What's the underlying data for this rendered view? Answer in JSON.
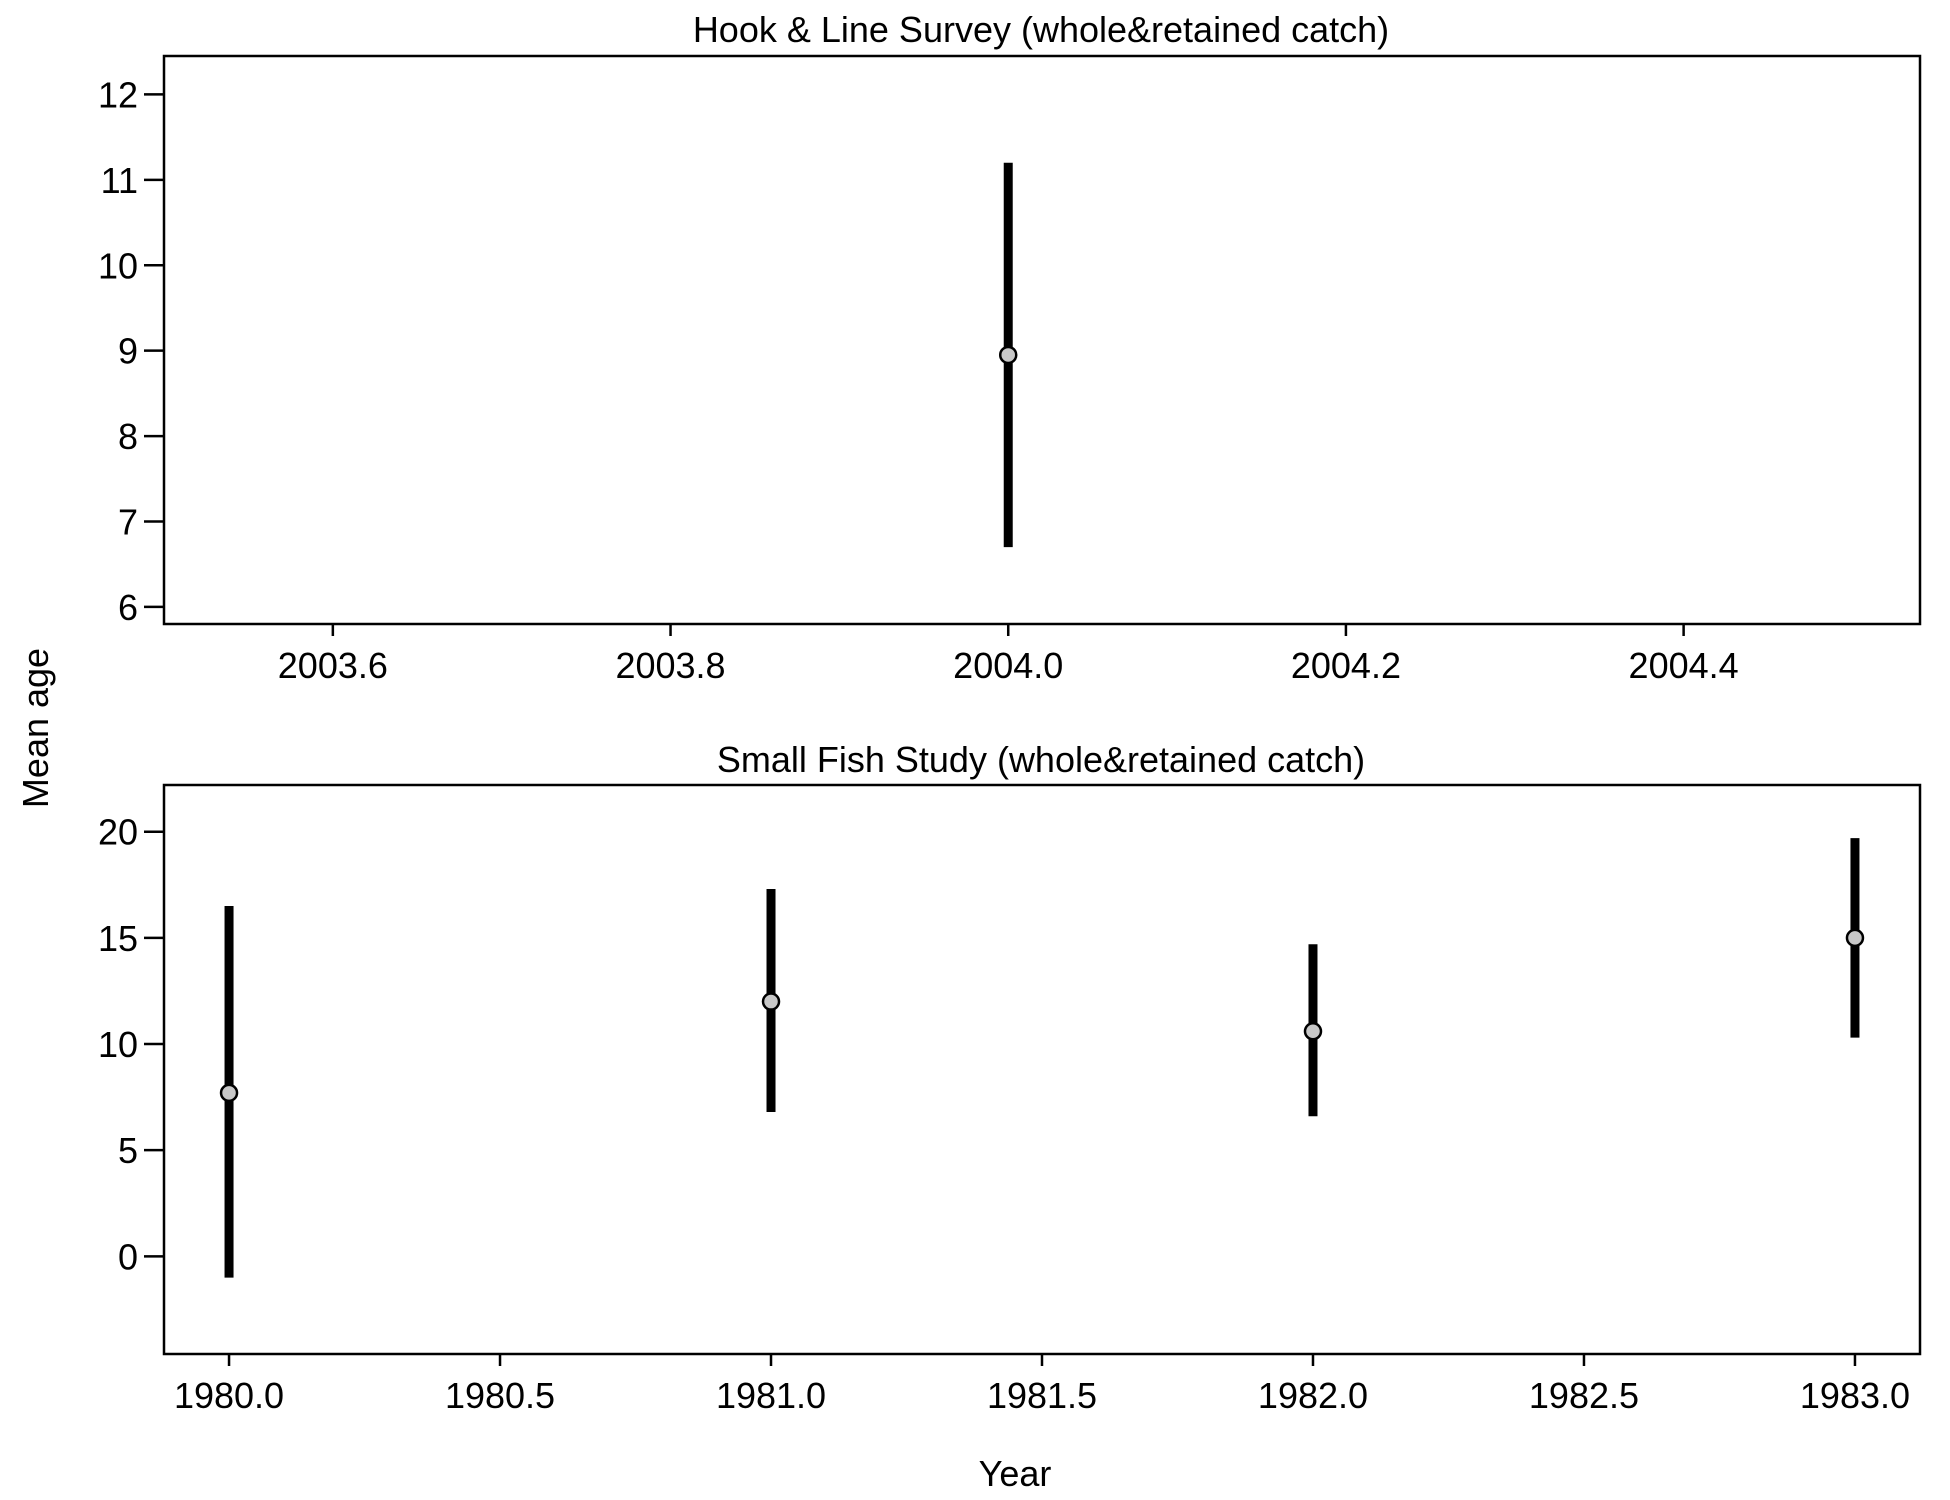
{
  "axes": {
    "ylabel": "Mean age",
    "xlabel": "Year"
  },
  "chart_data": [
    {
      "type": "scatter",
      "title": "Hook & Line Survey (whole&retained catch)",
      "xlim": [
        2003.5,
        2004.54
      ],
      "ylim": [
        5.8,
        12.45
      ],
      "x_ticks": [
        2003.6,
        2003.8,
        2004.0,
        2004.2,
        2004.4
      ],
      "x_tick_labels": [
        "2003.6",
        "2003.8",
        "2004.0",
        "2004.2",
        "2004.4"
      ],
      "y_ticks": [
        6,
        7,
        8,
        9,
        10,
        11,
        12
      ],
      "y_tick_labels": [
        "6",
        "7",
        "8",
        "9",
        "10",
        "11",
        "12"
      ],
      "series": [
        {
          "points": [
            {
              "x": 2004.0,
              "y": 8.95,
              "lower": 6.7,
              "upper": 11.2
            }
          ]
        }
      ],
      "grid": false,
      "colors": {
        "point_fill": "#c8c8c8",
        "bar": "#000000"
      }
    },
    {
      "type": "scatter",
      "title": "Small Fish Study (whole&retained catch)",
      "xlim": [
        1979.88,
        1983.12
      ],
      "ylim": [
        -4.6,
        22.2
      ],
      "x_ticks": [
        1980.0,
        1980.5,
        1981.0,
        1981.5,
        1982.0,
        1982.5,
        1983.0
      ],
      "x_tick_labels": [
        "1980.0",
        "1980.5",
        "1981.0",
        "1981.5",
        "1982.0",
        "1982.5",
        "1983.0"
      ],
      "y_ticks": [
        0,
        5,
        10,
        15,
        20
      ],
      "y_tick_labels": [
        "0",
        "5",
        "10",
        "15",
        "20"
      ],
      "series": [
        {
          "points": [
            {
              "x": 1980.0,
              "y": 7.7,
              "lower": -1.0,
              "upper": 16.5
            },
            {
              "x": 1981.0,
              "y": 12.0,
              "lower": 6.8,
              "upper": 17.3
            },
            {
              "x": 1982.0,
              "y": 10.6,
              "lower": 6.6,
              "upper": 14.7
            },
            {
              "x": 1983.0,
              "y": 15.0,
              "lower": 10.3,
              "upper": 19.7
            }
          ]
        }
      ],
      "grid": false,
      "colors": {
        "point_fill": "#c8c8c8",
        "bar": "#000000"
      }
    }
  ]
}
